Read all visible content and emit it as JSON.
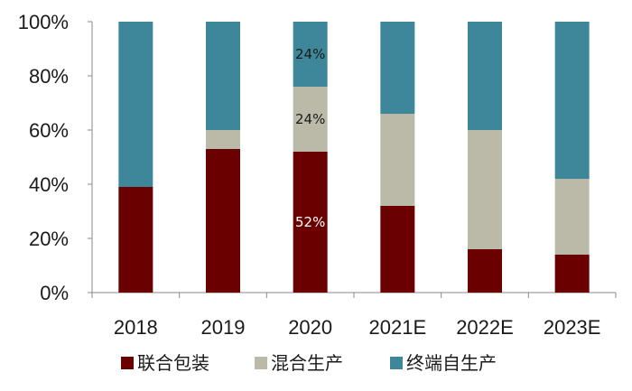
{
  "chart_data": {
    "type": "bar",
    "stacked": true,
    "categories": [
      "2018",
      "2019",
      "2020",
      "2021E",
      "2022E",
      "2023E"
    ],
    "series": [
      {
        "name": "联合包装",
        "color": "#6b0000",
        "values": [
          39,
          53,
          52,
          32,
          16,
          14
        ]
      },
      {
        "name": "混合生产",
        "color": "#bbbaa9",
        "values": [
          0,
          7,
          24,
          34,
          44,
          28
        ]
      },
      {
        "name": "终端自生产",
        "color": "#3e879a",
        "values": [
          61,
          40,
          24,
          34,
          40,
          58
        ]
      }
    ],
    "data_labels": [
      {
        "category": "2020",
        "series": "联合包装",
        "text": "52%",
        "color": "#ffffff"
      },
      {
        "category": "2020",
        "series": "混合生产",
        "text": "24%",
        "color": "#1a1a1a"
      },
      {
        "category": "2020",
        "series": "终端自生产",
        "text": "24%",
        "color": "#1a1a1a"
      }
    ],
    "yticks": [
      "0%",
      "20%",
      "40%",
      "60%",
      "80%",
      "100%"
    ],
    "ylim": [
      0,
      100
    ],
    "title": "",
    "xlabel": "",
    "ylabel": "",
    "legend_position": "bottom",
    "grid": false
  }
}
